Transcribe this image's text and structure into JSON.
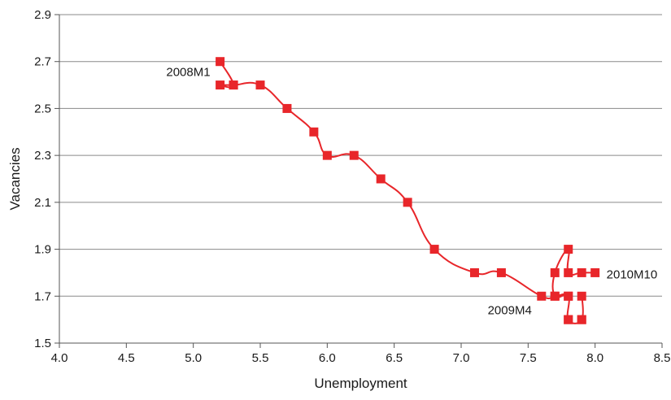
{
  "chart_data": {
    "type": "scatter",
    "title": "",
    "xlabel": "Unemployment",
    "ylabel": "Vacancies",
    "xlim": [
      4.0,
      8.5
    ],
    "ylim": [
      1.5,
      2.9
    ],
    "x_ticks": [
      "4.0",
      "4.5",
      "5.0",
      "5.5",
      "6.0",
      "6.5",
      "7.0",
      "7.5",
      "8.0",
      "8.5"
    ],
    "y_ticks": [
      "1.5",
      "1.7",
      "1.9",
      "2.1",
      "2.3",
      "2.5",
      "2.7",
      "2.9"
    ],
    "grid": "horizontal",
    "connected": true,
    "series": [
      {
        "color": "#e8262a",
        "points": [
          {
            "x": 5.2,
            "y": 2.7,
            "label": "2008M1"
          },
          {
            "x": 5.3,
            "y": 2.6
          },
          {
            "x": 5.2,
            "y": 2.6
          },
          {
            "x": 5.3,
            "y": 2.6
          },
          {
            "x": 5.5,
            "y": 2.6
          },
          {
            "x": 5.7,
            "y": 2.5
          },
          {
            "x": 5.9,
            "y": 2.4
          },
          {
            "x": 6.0,
            "y": 2.3
          },
          {
            "x": 6.2,
            "y": 2.3
          },
          {
            "x": 6.4,
            "y": 2.2
          },
          {
            "x": 6.6,
            "y": 2.1
          },
          {
            "x": 6.8,
            "y": 1.9
          },
          {
            "x": 7.1,
            "y": 1.8
          },
          {
            "x": 7.3,
            "y": 1.8
          },
          {
            "x": 7.6,
            "y": 1.7,
            "label": "2009M4"
          },
          {
            "x": 7.7,
            "y": 1.7
          },
          {
            "x": 7.8,
            "y": 1.7
          },
          {
            "x": 7.8,
            "y": 1.6
          },
          {
            "x": 7.9,
            "y": 1.6
          },
          {
            "x": 7.9,
            "y": 1.7
          },
          {
            "x": 7.9,
            "y": 1.6
          },
          {
            "x": 7.8,
            "y": 1.6
          },
          {
            "x": 7.8,
            "y": 1.7
          },
          {
            "x": 7.7,
            "y": 1.7
          },
          {
            "x": 7.7,
            "y": 1.8
          },
          {
            "x": 7.8,
            "y": 1.9
          },
          {
            "x": 7.8,
            "y": 1.8
          },
          {
            "x": 7.9,
            "y": 1.8
          },
          {
            "x": 8.0,
            "y": 1.8,
            "label": "2010M10"
          }
        ]
      }
    ]
  }
}
